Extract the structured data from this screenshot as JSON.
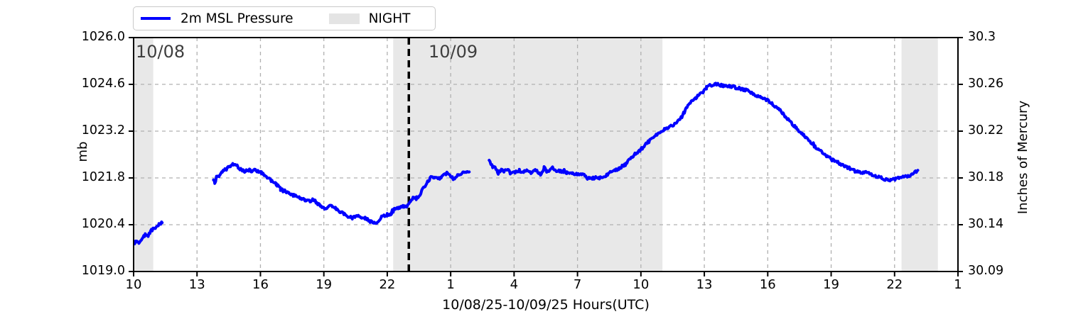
{
  "legend": {
    "series_label": "2m MSL Pressure",
    "night_label": "NIGHT"
  },
  "annotations": {
    "date_left": "10/08",
    "date_right": "10/09"
  },
  "axes": {
    "left_label": "mb",
    "right_label": "Inches of Mercury",
    "x_label": "10/08/25-10/09/25  Hours(UTC)"
  },
  "colors": {
    "line": "#0000ff",
    "night_band": "#e8e8e8",
    "grid": "#b0b0b0",
    "spine": "#000000",
    "date_line": "#000000",
    "date_text": "#3e3e3e"
  },
  "chart_data": {
    "type": "line",
    "title": "",
    "xlabel": "10/08/25-10/09/25  Hours(UTC)",
    "grid": true,
    "legend_position": "top-left-outside",
    "x_axis": {
      "units": "hours UTC from 10/08 00:00",
      "min_hour": 10,
      "max_hour": 49,
      "tick_hours": [
        10,
        13,
        16,
        19,
        22,
        25,
        28,
        31,
        34,
        37,
        40,
        43,
        46,
        49
      ],
      "tick_labels": [
        "10",
        "13",
        "16",
        "19",
        "22",
        "1",
        "4",
        "7",
        "10",
        "13",
        "16",
        "19",
        "22",
        "1"
      ]
    },
    "y_axis_left": {
      "label": "mb",
      "min": 1019.0,
      "max": 1026.0,
      "tick_values": [
        1019.0,
        1020.4,
        1021.8,
        1023.2,
        1024.6,
        1026.0
      ],
      "tick_labels": [
        "1019.0",
        "1020.4",
        "1021.8",
        "1023.2",
        "1024.6",
        "1026.0"
      ]
    },
    "y_axis_right": {
      "label": "Inches of Mercury",
      "tick_labels": [
        "30.09",
        "30.14",
        "30.18",
        "30.22",
        "30.26",
        "30.3"
      ]
    },
    "night_bands_hours": [
      [
        10.0,
        10.93
      ],
      [
        22.28,
        35.02
      ],
      [
        46.33,
        48.05
      ]
    ],
    "date_line_hour": 23.02,
    "series": [
      {
        "name": "2m MSL Pressure",
        "units": "mb",
        "color": "#0000ff",
        "segments": [
          [
            [
              10.05,
              1019.85
            ],
            [
              10.15,
              1019.92
            ],
            [
              10.25,
              1019.88
            ],
            [
              10.4,
              1020.0
            ],
            [
              10.55,
              1020.1
            ],
            [
              10.65,
              1020.05
            ],
            [
              10.8,
              1020.18
            ],
            [
              10.95,
              1020.3
            ],
            [
              11.05,
              1020.28
            ],
            [
              11.2,
              1020.4
            ],
            [
              11.35,
              1020.46
            ]
          ],
          [
            [
              13.78,
              1021.78
            ],
            [
              13.84,
              1021.62
            ],
            [
              13.92,
              1021.82
            ],
            [
              14.05,
              1021.88
            ],
            [
              14.2,
              1021.98
            ],
            [
              14.35,
              1022.05
            ],
            [
              14.5,
              1022.12
            ],
            [
              14.65,
              1022.2
            ],
            [
              14.82,
              1022.22
            ],
            [
              14.95,
              1022.12
            ],
            [
              15.1,
              1022.03
            ],
            [
              15.25,
              1022.0
            ],
            [
              15.4,
              1022.06
            ],
            [
              15.55,
              1022.0
            ],
            [
              15.72,
              1022.06
            ],
            [
              15.88,
              1022.0
            ],
            [
              16.05,
              1021.96
            ],
            [
              16.2,
              1021.86
            ],
            [
              16.35,
              1021.8
            ],
            [
              16.55,
              1021.7
            ],
            [
              16.75,
              1021.6
            ],
            [
              16.95,
              1021.5
            ],
            [
              17.15,
              1021.42
            ],
            [
              17.35,
              1021.34
            ],
            [
              17.55,
              1021.28
            ],
            [
              17.75,
              1021.22
            ],
            [
              17.95,
              1021.17
            ],
            [
              18.15,
              1021.12
            ],
            [
              18.35,
              1021.1
            ],
            [
              18.55,
              1021.13
            ],
            [
              18.75,
              1021.0
            ],
            [
              18.95,
              1020.92
            ],
            [
              19.1,
              1020.88
            ],
            [
              19.25,
              1021.0
            ],
            [
              19.4,
              1020.95
            ],
            [
              19.55,
              1020.9
            ],
            [
              19.75,
              1020.8
            ],
            [
              19.95,
              1020.72
            ],
            [
              20.15,
              1020.65
            ],
            [
              20.35,
              1020.6
            ],
            [
              20.55,
              1020.66
            ],
            [
              20.75,
              1020.62
            ],
            [
              20.95,
              1020.6
            ],
            [
              21.15,
              1020.52
            ],
            [
              21.3,
              1020.46
            ],
            [
              21.5,
              1020.42
            ],
            [
              21.65,
              1020.56
            ],
            [
              21.8,
              1020.68
            ],
            [
              22.0,
              1020.7
            ],
            [
              22.2,
              1020.73
            ],
            [
              22.35,
              1020.88
            ],
            [
              22.55,
              1020.9
            ],
            [
              22.75,
              1020.95
            ],
            [
              22.95,
              1020.96
            ],
            [
              23.1,
              1021.08
            ],
            [
              23.25,
              1021.22
            ],
            [
              23.4,
              1021.18
            ],
            [
              23.55,
              1021.33
            ],
            [
              23.75,
              1021.52
            ],
            [
              23.95,
              1021.72
            ],
            [
              24.1,
              1021.86
            ],
            [
              24.25,
              1021.8
            ],
            [
              24.4,
              1021.76
            ],
            [
              24.55,
              1021.83
            ],
            [
              24.7,
              1021.9
            ],
            [
              24.85,
              1021.96
            ],
            [
              25.0,
              1021.86
            ],
            [
              25.15,
              1021.78
            ],
            [
              25.32,
              1021.9
            ],
            [
              25.5,
              1021.94
            ],
            [
              25.7,
              1021.98
            ],
            [
              25.88,
              1021.98
            ]
          ],
          [
            [
              26.82,
              1022.3
            ],
            [
              26.95,
              1022.16
            ],
            [
              27.1,
              1022.1
            ],
            [
              27.25,
              1021.95
            ],
            [
              27.4,
              1022.05
            ],
            [
              27.55,
              1022.0
            ],
            [
              27.7,
              1022.08
            ],
            [
              27.85,
              1021.92
            ],
            [
              28.05,
              1021.98
            ],
            [
              28.25,
              1022.02
            ],
            [
              28.45,
              1021.96
            ],
            [
              28.6,
              1022.04
            ],
            [
              28.8,
              1021.96
            ],
            [
              29.0,
              1022.05
            ],
            [
              29.25,
              1021.88
            ],
            [
              29.42,
              1022.12
            ],
            [
              29.6,
              1021.98
            ],
            [
              29.82,
              1022.1
            ],
            [
              30.0,
              1022.02
            ],
            [
              30.25,
              1021.99
            ],
            [
              30.5,
              1021.96
            ],
            [
              30.75,
              1021.94
            ],
            [
              31.0,
              1021.91
            ],
            [
              31.35,
              1021.88
            ],
            [
              31.5,
              1021.78
            ],
            [
              31.7,
              1021.8
            ],
            [
              32.0,
              1021.8
            ],
            [
              32.3,
              1021.84
            ],
            [
              32.55,
              1021.98
            ],
            [
              32.95,
              1022.08
            ],
            [
              33.3,
              1022.22
            ],
            [
              33.6,
              1022.45
            ],
            [
              33.95,
              1022.62
            ],
            [
              34.3,
              1022.85
            ],
            [
              34.6,
              1023.0
            ],
            [
              34.95,
              1023.2
            ],
            [
              35.3,
              1023.3
            ],
            [
              35.6,
              1023.4
            ],
            [
              35.9,
              1023.6
            ],
            [
              36.1,
              1023.82
            ],
            [
              36.3,
              1024.05
            ],
            [
              36.6,
              1024.2
            ],
            [
              36.9,
              1024.35
            ],
            [
              37.1,
              1024.5
            ],
            [
              37.3,
              1024.58
            ],
            [
              37.6,
              1024.6
            ],
            [
              37.9,
              1024.55
            ],
            [
              38.2,
              1024.55
            ],
            [
              38.65,
              1024.48
            ],
            [
              39.0,
              1024.42
            ],
            [
              39.3,
              1024.32
            ],
            [
              39.65,
              1024.22
            ],
            [
              40.0,
              1024.12
            ],
            [
              40.35,
              1023.95
            ],
            [
              40.65,
              1023.78
            ],
            [
              41.0,
              1023.52
            ],
            [
              41.35,
              1023.3
            ],
            [
              41.7,
              1023.08
            ],
            [
              42.0,
              1022.88
            ],
            [
              42.35,
              1022.67
            ],
            [
              42.7,
              1022.5
            ],
            [
              43.0,
              1022.36
            ],
            [
              43.35,
              1022.25
            ],
            [
              43.7,
              1022.14
            ],
            [
              44.05,
              1022.03
            ],
            [
              44.4,
              1021.94
            ],
            [
              44.7,
              1021.97
            ],
            [
              45.05,
              1021.87
            ],
            [
              45.4,
              1021.79
            ],
            [
              45.7,
              1021.73
            ],
            [
              46.05,
              1021.77
            ],
            [
              46.4,
              1021.82
            ],
            [
              46.7,
              1021.86
            ],
            [
              46.95,
              1021.96
            ],
            [
              47.1,
              1022.03
            ]
          ]
        ]
      }
    ]
  }
}
